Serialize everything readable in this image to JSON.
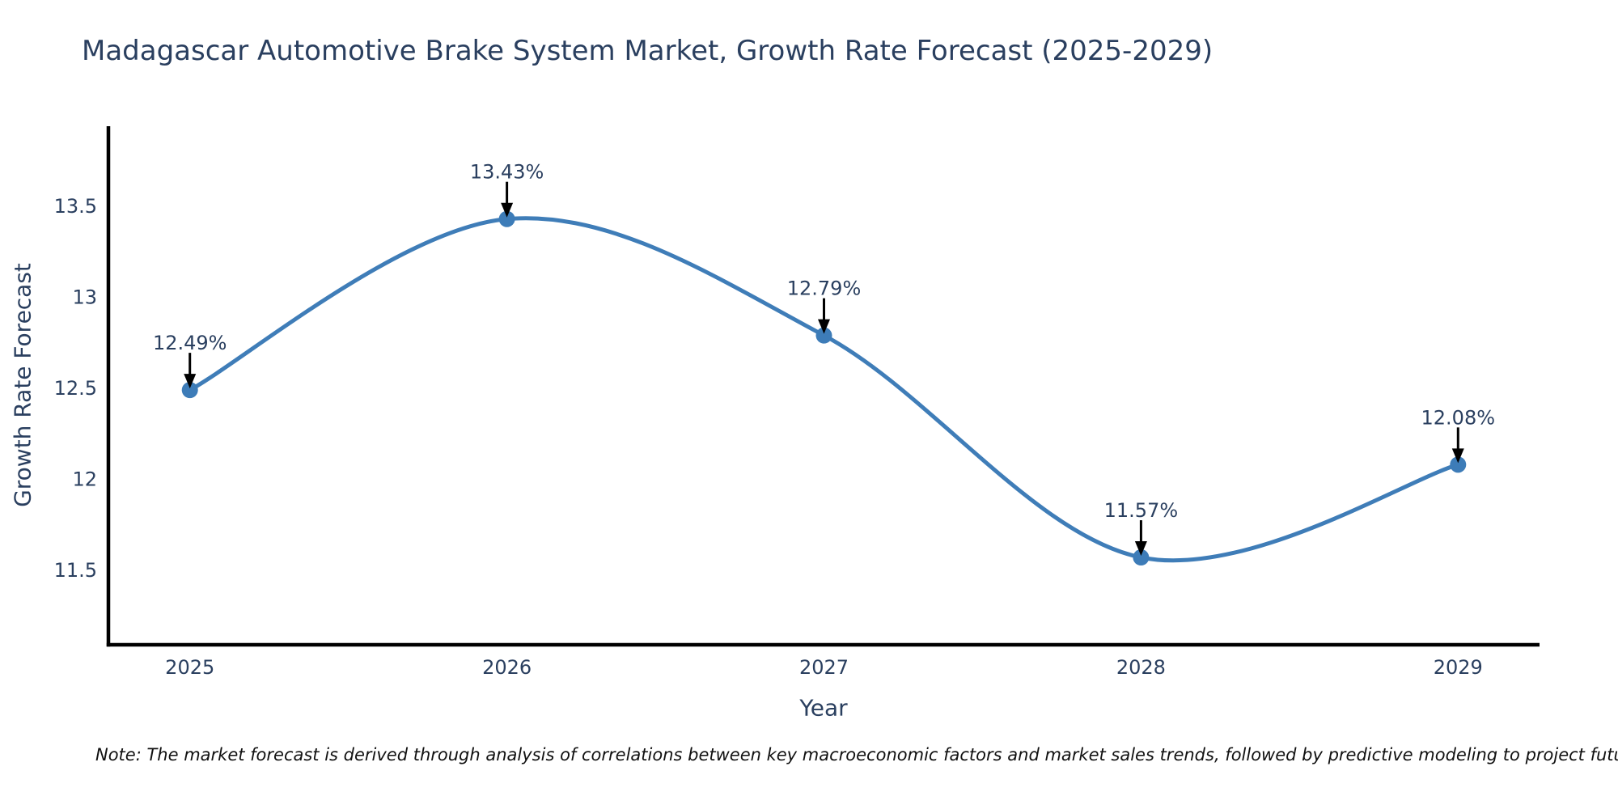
{
  "title": "Madagascar Automotive Brake System Market, Growth Rate Forecast (2025-2029)",
  "note": "Note: The market forecast is derived through analysis of correlations between key macroeconomic factors and market sales trends, followed by predictive modeling to project future sal",
  "colors": {
    "text": "#2a3f5f",
    "line": "#3f7db8",
    "marker": "#3d7cb8",
    "axis": "#000000",
    "arrow": "#000000",
    "background": "#ffffff"
  },
  "chart_data": {
    "type": "line",
    "title": "Madagascar Automotive Brake System Market, Growth Rate Forecast (2025-2029)",
    "xlabel": "Year",
    "ylabel": "Growth Rate Forecast",
    "x": [
      2025,
      2026,
      2027,
      2028,
      2029
    ],
    "y": [
      12.49,
      13.43,
      12.79,
      11.57,
      12.08
    ],
    "series": [
      {
        "name": "Growth Rate Forecast",
        "values": [
          12.49,
          13.43,
          12.79,
          11.57,
          12.08
        ]
      }
    ],
    "point_labels": [
      "12.49%",
      "13.43%",
      "12.79%",
      "11.57%",
      "12.08%"
    ],
    "x_tick_labels": [
      "2025",
      "2026",
      "2027",
      "2028",
      "2029"
    ],
    "y_tick_labels": [
      "13.5",
      "13",
      "12.5",
      "12",
      "11.5"
    ],
    "y_tick_values": [
      13.5,
      13.0,
      12.5,
      12.0,
      11.5
    ],
    "xlim": [
      2024.743,
      2029.257
    ],
    "ylim": [
      11.09,
      13.94
    ],
    "line_shape": "spline",
    "grid": false,
    "legend": "none",
    "annotations_have_arrows": true
  }
}
